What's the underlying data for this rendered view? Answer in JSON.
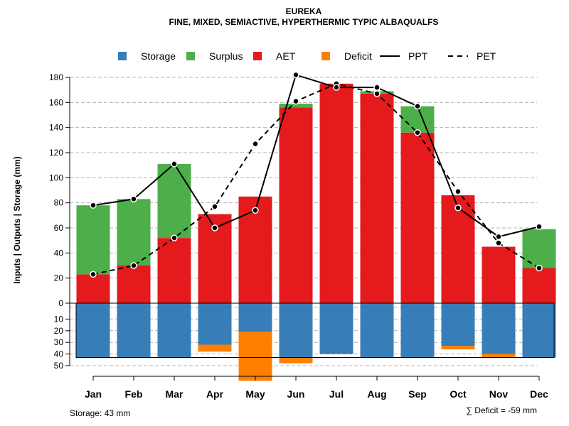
{
  "chart_data": {
    "type": "bar",
    "title": "EUREKA",
    "subtitle": "FINE, MIXED, SEMIACTIVE, HYPERTHERMIC TYPIC ALBAQUALFS",
    "ylabel": "Inputs | Outputs | Storage    (mm)",
    "ylim": [
      0,
      180
    ],
    "lower_ylim": [
      0,
      50
    ],
    "yticks_upper": [
      "0",
      "20",
      "40",
      "60",
      "80",
      "100",
      "120",
      "140",
      "160",
      "180"
    ],
    "yticks_lower": [
      "10",
      "20",
      "30",
      "40",
      "50"
    ],
    "categories": [
      "Jan",
      "Feb",
      "Mar",
      "Apr",
      "May",
      "Jun",
      "Jul",
      "Aug",
      "Sep",
      "Oct",
      "Nov",
      "Dec"
    ],
    "legend": [
      {
        "label": "Storage",
        "kind": "box",
        "color": "#377eb8"
      },
      {
        "label": "Surplus",
        "kind": "box",
        "color": "#4daf4a"
      },
      {
        "label": "AET",
        "kind": "box",
        "color": "#e41a1c"
      },
      {
        "label": "Deficit",
        "kind": "box",
        "color": "#ff7f00"
      },
      {
        "label": "PPT",
        "kind": "solid",
        "color": "#000000"
      },
      {
        "label": "PET",
        "kind": "dashed",
        "color": "#000000"
      }
    ],
    "series": [
      {
        "name": "AET",
        "values": [
          23,
          30,
          52,
          71,
          85,
          156,
          175,
          167,
          136,
          86,
          45,
          28
        ]
      },
      {
        "name": "Surplus",
        "values": [
          55,
          53,
          59,
          0,
          0,
          3,
          0,
          2,
          21,
          0,
          0,
          31
        ]
      },
      {
        "name": "PPT",
        "values": [
          78,
          83,
          111,
          60,
          74,
          182,
          172,
          172,
          157,
          76,
          53,
          61
        ]
      },
      {
        "name": "PET",
        "values": [
          23,
          30,
          52,
          77,
          127,
          161,
          175,
          167,
          136,
          89,
          48,
          28
        ]
      },
      {
        "name": "Storage",
        "values": [
          43,
          43,
          43,
          32,
          21,
          43,
          40,
          43,
          43,
          33,
          40,
          43
        ]
      },
      {
        "name": "Deficit",
        "values": [
          0,
          0,
          0,
          6,
          42,
          5,
          0,
          0,
          0,
          3,
          3,
          0
        ]
      }
    ],
    "storage_capacity": 43,
    "footer_left": "Storage: 43 mm",
    "footer_right": "∑ Deficit = -59 mm"
  }
}
